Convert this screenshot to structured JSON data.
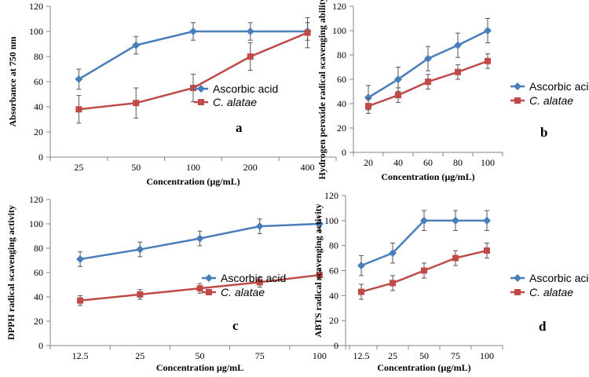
{
  "colors": {
    "ascorbic": "#4a7ebb",
    "calatae": "#be4b48",
    "axis": "#868686",
    "errorbar": "#555555"
  },
  "chart_data": [
    {
      "type": "line",
      "panel": "a",
      "xlabel": "Concentration (µg/mL)",
      "ylabel": "Absorbance at 750 nm",
      "ylim": [
        0,
        120
      ],
      "yticks": [
        0,
        20,
        40,
        60,
        80,
        100,
        120
      ],
      "categories": [
        "25",
        "50",
        "100",
        "200",
        "400"
      ],
      "series": [
        {
          "name": "Ascorbic acid",
          "values": [
            62,
            89,
            100,
            100,
            100
          ],
          "errors": [
            8,
            7,
            7,
            7,
            7
          ]
        },
        {
          "name": "C. alatae",
          "values": [
            38,
            43,
            55,
            80,
            99
          ],
          "errors": [
            11,
            12,
            11,
            11,
            12
          ]
        }
      ],
      "legend": [
        "Ascorbic acid",
        "C. alatae"
      ]
    },
    {
      "type": "line",
      "panel": "b",
      "xlabel": "Concentration (µg/mL)",
      "ylabel": "Hydrogen peroxide radical scavenging ability (%)",
      "ylim": [
        0,
        120
      ],
      "yticks": [
        0,
        20,
        40,
        60,
        80,
        100,
        120
      ],
      "categories": [
        "20",
        "40",
        "60",
        "80",
        "100"
      ],
      "series": [
        {
          "name": "Ascorbic acid",
          "values": [
            45,
            60,
            77,
            88,
            100
          ],
          "errors": [
            10,
            10,
            10,
            10,
            10
          ]
        },
        {
          "name": "C. alatae",
          "values": [
            38,
            47,
            58,
            66,
            75
          ],
          "errors": [
            6,
            6,
            6,
            6,
            6
          ]
        }
      ],
      "legend": [
        "Ascorbic acid",
        "C. alatae"
      ]
    },
    {
      "type": "line",
      "panel": "c",
      "xlabel": "Concentration µg/mL",
      "ylabel": "DPPH radical scavenging activity",
      "ylim": [
        0,
        120
      ],
      "yticks": [
        0,
        20,
        40,
        60,
        80,
        100,
        120
      ],
      "categories": [
        "12.5",
        "25",
        "50",
        "75",
        "100"
      ],
      "series": [
        {
          "name": "Ascorbic acid",
          "values": [
            71,
            79,
            88,
            98,
            100
          ],
          "errors": [
            6,
            6,
            6,
            6,
            6
          ]
        },
        {
          "name": "C. alatae",
          "values": [
            37,
            42,
            47,
            52,
            58
          ],
          "errors": [
            4,
            4,
            4,
            4,
            4
          ]
        }
      ],
      "legend": [
        "Ascorbic acid",
        "C. alatae"
      ]
    },
    {
      "type": "line",
      "panel": "d",
      "xlabel": "Concentration (µg/mL)",
      "ylabel": "ABTS radical scavenging activity",
      "ylim": [
        0,
        120
      ],
      "yticks": [
        0,
        20,
        40,
        60,
        80,
        100,
        120
      ],
      "categories": [
        "12.5",
        "25",
        "50",
        "75",
        "100"
      ],
      "series": [
        {
          "name": "Ascorbic acid",
          "values": [
            64,
            74,
            100,
            100,
            100
          ],
          "errors": [
            8,
            8,
            8,
            8,
            8
          ]
        },
        {
          "name": "C. alatae",
          "values": [
            43,
            50,
            60,
            70,
            76
          ],
          "errors": [
            6,
            6,
            6,
            6,
            6
          ]
        }
      ],
      "legend": [
        "Ascorbic acid",
        "C. alatae"
      ]
    }
  ]
}
